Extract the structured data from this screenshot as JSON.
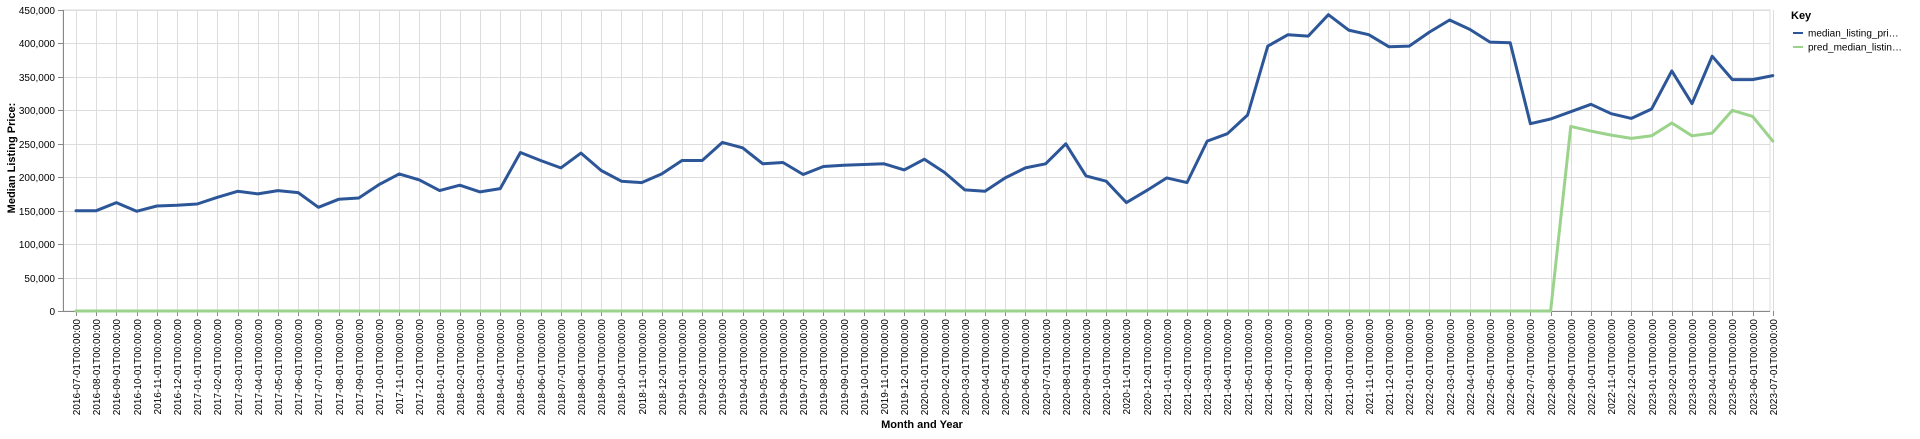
{
  "chart_data": {
    "type": "line",
    "xlabel": "Month and Year",
    "ylabel": "Median Listing Price:",
    "ylim": [
      0,
      450000
    ],
    "yticks": [
      "0",
      "50,000",
      "100,000",
      "150,000",
      "200,000",
      "250,000",
      "300,000",
      "350,000",
      "400,000",
      "450,000"
    ],
    "ytick_values": [
      0,
      50000,
      100000,
      150000,
      200000,
      250000,
      300000,
      350000,
      400000,
      450000
    ],
    "grid": true,
    "legend_position": "top-right",
    "legend_title": "Key",
    "x": [
      "2016-07-01T00:00:00",
      "2016-08-01T00:00:00",
      "2016-09-01T00:00:00",
      "2016-10-01T00:00:00",
      "2016-11-01T00:00:00",
      "2016-12-01T00:00:00",
      "2017-01-01T00:00:00",
      "2017-02-01T00:00:00",
      "2017-03-01T00:00:00",
      "2017-04-01T00:00:00",
      "2017-05-01T00:00:00",
      "2017-06-01T00:00:00",
      "2017-07-01T00:00:00",
      "2017-08-01T00:00:00",
      "2017-09-01T00:00:00",
      "2017-10-01T00:00:00",
      "2017-11-01T00:00:00",
      "2017-12-01T00:00:00",
      "2018-01-01T00:00:00",
      "2018-02-01T00:00:00",
      "2018-03-01T00:00:00",
      "2018-04-01T00:00:00",
      "2018-05-01T00:00:00",
      "2018-06-01T00:00:00",
      "2018-07-01T00:00:00",
      "2018-08-01T00:00:00",
      "2018-09-01T00:00:00",
      "2018-10-01T00:00:00",
      "2018-11-01T00:00:00",
      "2018-12-01T00:00:00",
      "2019-01-01T00:00:00",
      "2019-02-01T00:00:00",
      "2019-03-01T00:00:00",
      "2019-04-01T00:00:00",
      "2019-05-01T00:00:00",
      "2019-06-01T00:00:00",
      "2019-07-01T00:00:00",
      "2019-08-01T00:00:00",
      "2019-09-01T00:00:00",
      "2019-10-01T00:00:00",
      "2019-11-01T00:00:00",
      "2019-12-01T00:00:00",
      "2020-01-01T00:00:00",
      "2020-02-01T00:00:00",
      "2020-03-01T00:00:00",
      "2020-04-01T00:00:00",
      "2020-05-01T00:00:00",
      "2020-06-01T00:00:00",
      "2020-07-01T00:00:00",
      "2020-08-01T00:00:00",
      "2020-09-01T00:00:00",
      "2020-10-01T00:00:00",
      "2020-11-01T00:00:00",
      "2020-12-01T00:00:00",
      "2021-01-01T00:00:00",
      "2021-02-01T00:00:00",
      "2021-03-01T00:00:00",
      "2021-04-01T00:00:00",
      "2021-05-01T00:00:00",
      "2021-06-01T00:00:00",
      "2021-07-01T00:00:00",
      "2021-08-01T00:00:00",
      "2021-09-01T00:00:00",
      "2021-10-01T00:00:00",
      "2021-11-01T00:00:00",
      "2021-12-01T00:00:00",
      "2022-01-01T00:00:00",
      "2022-02-01T00:00:00",
      "2022-03-01T00:00:00",
      "2022-04-01T00:00:00",
      "2022-05-01T00:00:00",
      "2022-06-01T00:00:00",
      "2022-07-01T00:00:00",
      "2022-08-01T00:00:00",
      "2022-09-01T00:00:00",
      "2022-10-01T00:00:00",
      "2022-11-01T00:00:00",
      "2022-12-01T00:00:00",
      "2023-01-01T00:00:00",
      "2023-02-01T00:00:00",
      "2023-03-01T00:00:00",
      "2023-04-01T00:00:00",
      "2023-05-01T00:00:00",
      "2023-06-01T00:00:00",
      "2023-07-01T00:00:00"
    ],
    "series": [
      {
        "name": "median_listing_pri…",
        "color": "#2c5697",
        "values": [
          150000,
          150000,
          162000,
          149000,
          157000,
          158000,
          160000,
          170000,
          179000,
          175000,
          180000,
          177000,
          155000,
          167000,
          169000,
          189000,
          205000,
          196000,
          180000,
          188000,
          178000,
          183000,
          237000,
          225000,
          214000,
          236000,
          210000,
          194000,
          192000,
          205000,
          225000,
          225000,
          252000,
          244000,
          220000,
          222000,
          204000,
          216000,
          218000,
          219000,
          220000,
          211000,
          227000,
          207000,
          181000,
          179000,
          199000,
          214000,
          220000,
          250000,
          202000,
          194000,
          162000,
          180000,
          199000,
          192000,
          254000,
          265000,
          293000,
          396000,
          413000,
          411000,
          443000,
          420000,
          413000,
          395000,
          396000,
          417000,
          435000,
          421000,
          402000,
          401000,
          280000,
          287000,
          298000,
          309000,
          295000,
          288000,
          302000,
          359000,
          310000,
          381000,
          346000,
          346000,
          352000
        ]
      },
      {
        "name": "pred_median_listin…",
        "color": "#9bd38c",
        "values": [
          0,
          0,
          0,
          0,
          0,
          0,
          0,
          0,
          0,
          0,
          0,
          0,
          0,
          0,
          0,
          0,
          0,
          0,
          0,
          0,
          0,
          0,
          0,
          0,
          0,
          0,
          0,
          0,
          0,
          0,
          0,
          0,
          0,
          0,
          0,
          0,
          0,
          0,
          0,
          0,
          0,
          0,
          0,
          0,
          0,
          0,
          0,
          0,
          0,
          0,
          0,
          0,
          0,
          0,
          0,
          0,
          0,
          0,
          0,
          0,
          0,
          0,
          0,
          0,
          0,
          0,
          0,
          0,
          0,
          0,
          0,
          0,
          0,
          0,
          276000,
          269000,
          263000,
          258000,
          262000,
          281000,
          262000,
          266000,
          300000,
          291000,
          254000
        ]
      }
    ]
  }
}
